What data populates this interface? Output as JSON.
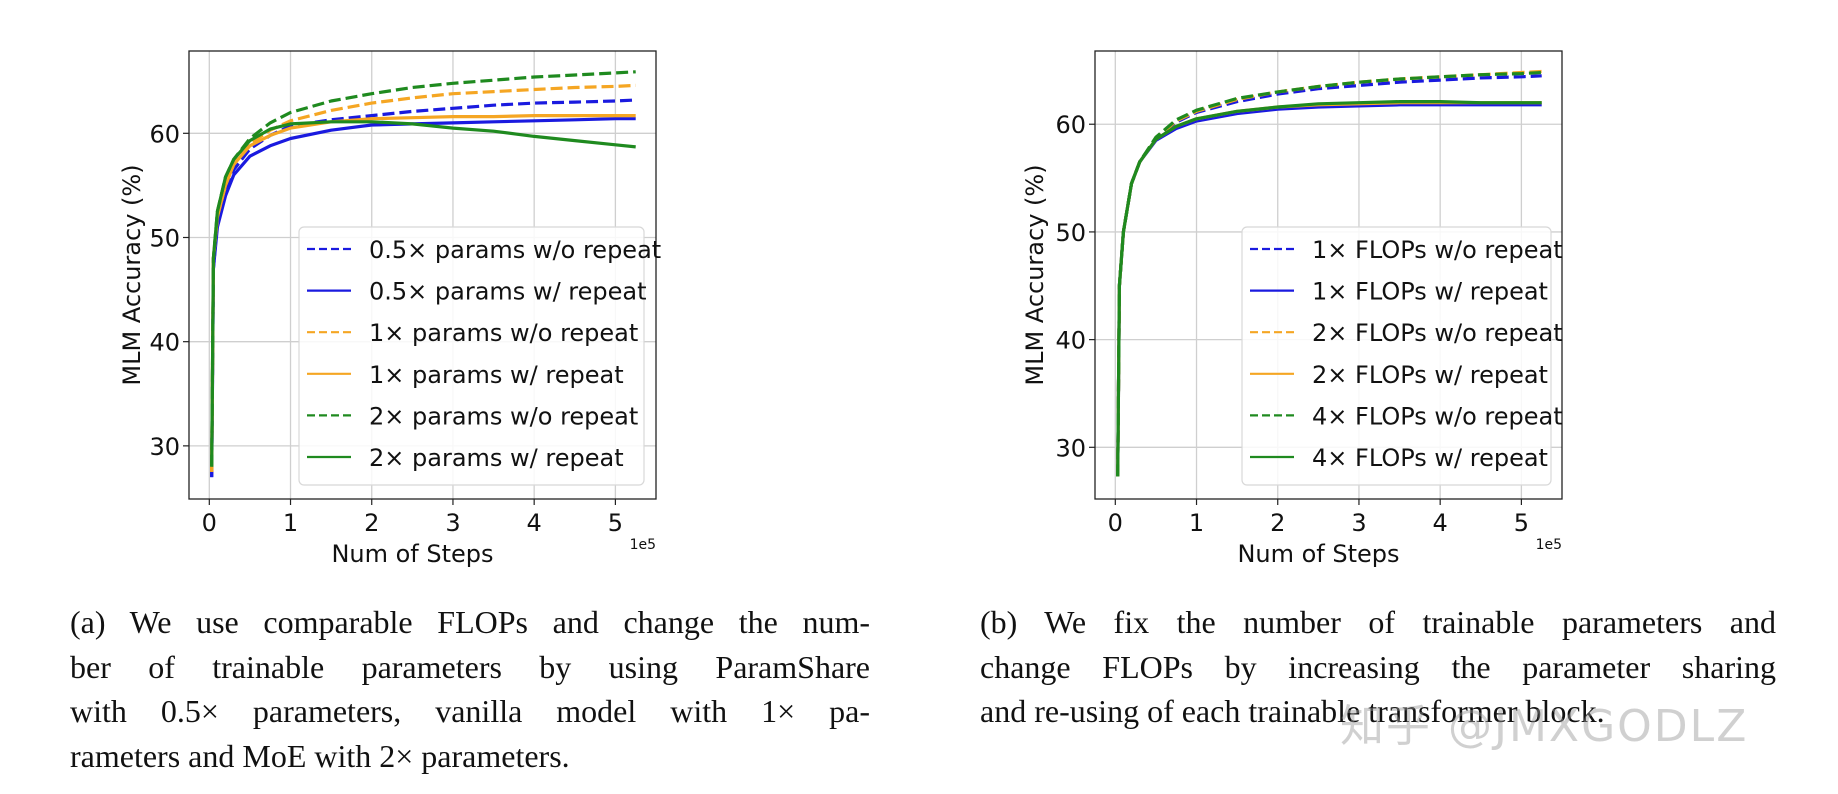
{
  "chart_data": [
    {
      "type": "line",
      "id": "a",
      "xlabel": "Num of Steps",
      "ylabel": "MLM Accuracy (%)",
      "x_offset_label": "1e5",
      "xlim": [
        -0.25,
        5.5
      ],
      "ylim": [
        24.9,
        67.9
      ],
      "xticks": [
        0,
        1,
        2,
        3,
        4,
        5
      ],
      "yticks": [
        30,
        40,
        50,
        60
      ],
      "grid": true,
      "legend_placement": "lower-right",
      "x": [
        0.03,
        0.05,
        0.1,
        0.2,
        0.3,
        0.5,
        0.75,
        1,
        1.5,
        2,
        2.5,
        3,
        3.5,
        4,
        4.5,
        5,
        5.25
      ],
      "series": [
        {
          "name": "0.5× params w/o repeat",
          "color": "#1a1adf",
          "dash": true,
          "values": [
            27,
            47,
            51.5,
            54.5,
            56.5,
            58.5,
            59.8,
            60.7,
            61.3,
            61.7,
            62.1,
            62.4,
            62.7,
            62.9,
            63.0,
            63.1,
            63.2
          ]
        },
        {
          "name": "0.5× params w/ repeat",
          "color": "#1a1adf",
          "dash": false,
          "values": [
            27,
            47,
            51,
            54,
            56,
            57.8,
            58.8,
            59.5,
            60.3,
            60.8,
            60.9,
            61.0,
            61.1,
            61.2,
            61.3,
            61.4,
            61.4
          ]
        },
        {
          "name": "1× params w/o repeat",
          "color": "#f5a623",
          "dash": true,
          "values": [
            27.5,
            48,
            52,
            55,
            57,
            59,
            60.3,
            61.2,
            62.2,
            62.9,
            63.4,
            63.8,
            64.0,
            64.2,
            64.4,
            64.5,
            64.6
          ]
        },
        {
          "name": "1× params w/ repeat",
          "color": "#f5a623",
          "dash": false,
          "values": [
            27.5,
            48,
            52,
            55,
            57,
            58.8,
            59.8,
            60.5,
            61.1,
            61.4,
            61.5,
            61.6,
            61.6,
            61.7,
            61.7,
            61.7,
            61.7
          ]
        },
        {
          "name": "2× params w/o repeat",
          "color": "#1f8a1f",
          "dash": true,
          "values": [
            28,
            48,
            52.5,
            55.8,
            57.5,
            59.5,
            61,
            62,
            63.1,
            63.8,
            64.4,
            64.8,
            65.1,
            65.4,
            65.6,
            65.8,
            65.9
          ]
        },
        {
          "name": "2× params w/ repeat",
          "color": "#1f8a1f",
          "dash": false,
          "values": [
            28,
            48,
            52.5,
            55.8,
            57.5,
            59.3,
            60.4,
            60.9,
            61.1,
            61.1,
            60.9,
            60.5,
            60.2,
            59.7,
            59.3,
            58.9,
            58.7
          ]
        }
      ]
    },
    {
      "type": "line",
      "id": "b",
      "xlabel": "Num of Steps",
      "ylabel": "MLM Accuracy (%)",
      "x_offset_label": "1e5",
      "xlim": [
        -0.25,
        5.5
      ],
      "ylim": [
        25.2,
        66.8
      ],
      "xticks": [
        0,
        1,
        2,
        3,
        4,
        5
      ],
      "yticks": [
        30,
        40,
        50,
        60
      ],
      "grid": true,
      "legend_placement": "lower-right",
      "x": [
        0.03,
        0.05,
        0.1,
        0.2,
        0.3,
        0.5,
        0.75,
        1,
        1.5,
        2,
        2.5,
        3,
        3.5,
        4,
        4.5,
        5,
        5.25
      ],
      "series": [
        {
          "name": "1× FLOPs w/o repeat",
          "color": "#1a1adf",
          "dash": true,
          "values": [
            27.3,
            45,
            50,
            54.5,
            56.5,
            58.7,
            60.2,
            61.1,
            62.1,
            62.8,
            63.3,
            63.6,
            63.9,
            64.1,
            64.3,
            64.4,
            64.5
          ]
        },
        {
          "name": "1× FLOPs w/ repeat",
          "color": "#1a1adf",
          "dash": false,
          "values": [
            27.3,
            45,
            50,
            54.5,
            56.5,
            58.5,
            59.6,
            60.3,
            61.0,
            61.4,
            61.6,
            61.7,
            61.8,
            61.8,
            61.8,
            61.8,
            61.8
          ]
        },
        {
          "name": "2× FLOPs w/o repeat",
          "color": "#f5a623",
          "dash": true,
          "values": [
            27.3,
            45,
            50,
            54.5,
            56.5,
            58.7,
            60.3,
            61.2,
            62.3,
            63.0,
            63.5,
            63.9,
            64.2,
            64.4,
            64.6,
            64.8,
            64.9
          ]
        },
        {
          "name": "2× FLOPs w/ repeat",
          "color": "#f5a623",
          "dash": false,
          "values": [
            27.3,
            45,
            50,
            54.5,
            56.5,
            58.6,
            59.8,
            60.5,
            61.2,
            61.6,
            61.8,
            61.9,
            62.0,
            62.0,
            62.0,
            62.0,
            62.0
          ]
        },
        {
          "name": "4× FLOPs w/o repeat",
          "color": "#1f8a1f",
          "dash": true,
          "values": [
            27.3,
            45,
            50,
            54.5,
            56.5,
            58.8,
            60.4,
            61.3,
            62.4,
            63.0,
            63.5,
            63.9,
            64.2,
            64.4,
            64.6,
            64.7,
            64.8
          ]
        },
        {
          "name": "4× FLOPs w/ repeat",
          "color": "#1f8a1f",
          "dash": false,
          "values": [
            27.3,
            45,
            50,
            54.5,
            56.5,
            58.6,
            59.8,
            60.5,
            61.2,
            61.6,
            61.9,
            62.0,
            62.1,
            62.1,
            62.0,
            62.0,
            62.0
          ]
        }
      ]
    }
  ],
  "captions": {
    "a": [
      "(a) We use comparable FLOPs and change the num-",
      "ber of trainable parameters by using ParamShare",
      "with 0.5× parameters, vanilla model with 1× pa-",
      "rameters and MoE with 2× parameters."
    ],
    "b": [
      "(b) We fix the number of trainable parameters and",
      "change FLOPs by increasing the parameter sharing",
      "and re-using of each trainable transformer block."
    ]
  },
  "watermark": "知乎 @JMXGODLZ"
}
